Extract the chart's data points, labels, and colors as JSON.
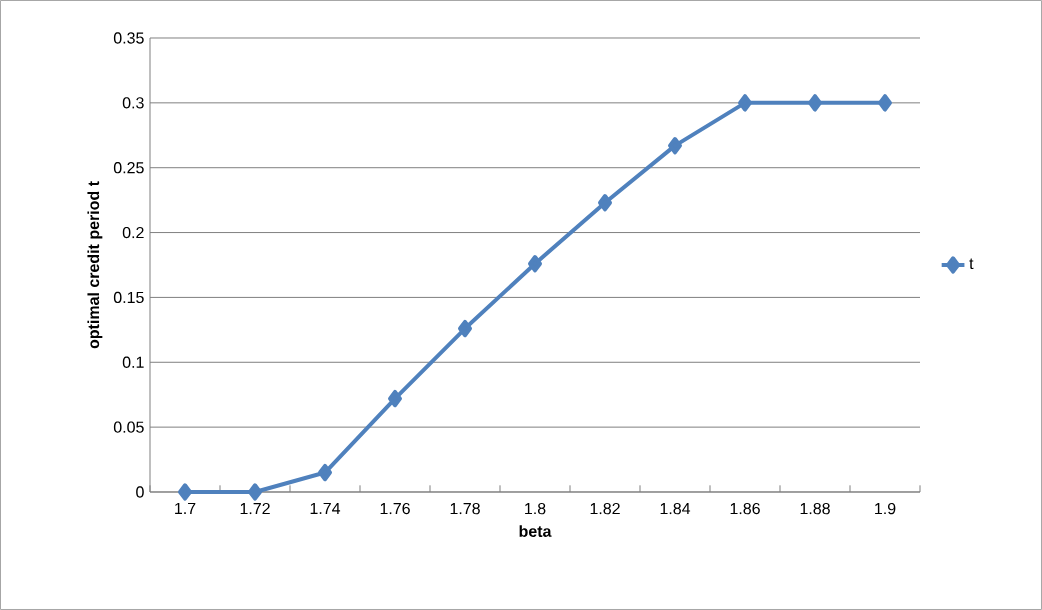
{
  "chart_data": {
    "type": "line",
    "xlabel": "beta",
    "ylabel": "optimal credit period t",
    "categories": [
      "1.7",
      "1.72",
      "1.74",
      "1.76",
      "1.78",
      "1.8",
      "1.82",
      "1.84",
      "1.86",
      "1.88",
      "1.9"
    ],
    "series": [
      {
        "name": "t",
        "color": "#4f81bd",
        "values": [
          0,
          0,
          0.015,
          0.072,
          0.126,
          0.176,
          0.223,
          0.267,
          0.3,
          0.3,
          0.3
        ]
      }
    ],
    "ylim": [
      0,
      0.35
    ],
    "yticks": [
      0,
      0.05,
      0.1,
      0.15,
      0.2,
      0.25,
      0.3,
      0.35
    ],
    "grid": "y",
    "legend": "right",
    "marker": "diamond",
    "line_style": "solid"
  }
}
